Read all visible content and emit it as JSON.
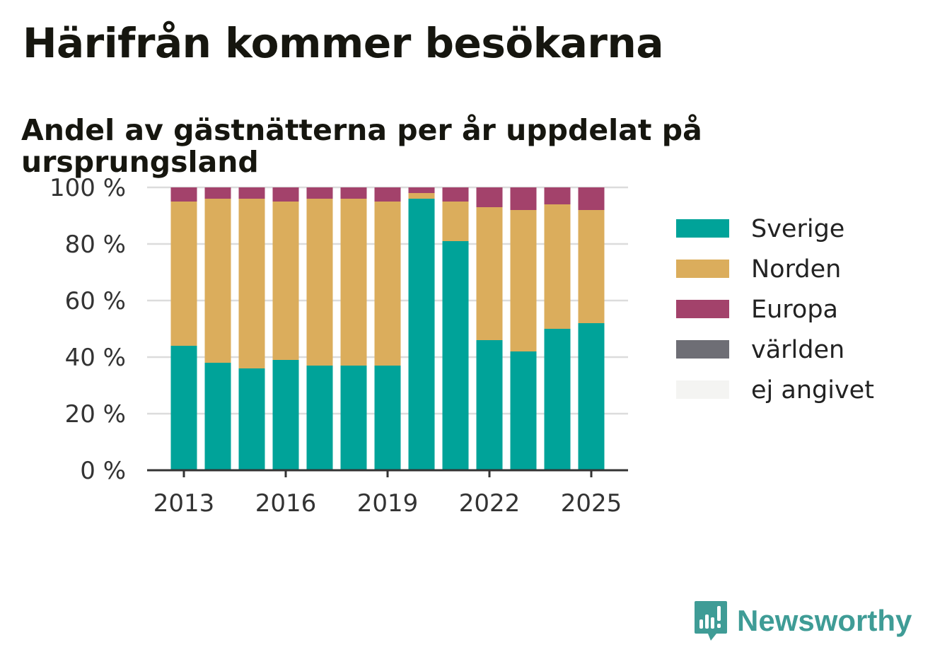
{
  "header": {
    "title": "Härifrån kommer besökarna",
    "subtitle": "Andel av gästnätterna per år uppdelat på ursprungsland"
  },
  "brand": {
    "name": "Newsworthy",
    "icon": "newsworthy-logo-icon"
  },
  "chart_data": {
    "type": "bar",
    "stacked": true,
    "categories": [
      "2013",
      "2014",
      "2015",
      "2016",
      "2017",
      "2018",
      "2019",
      "2020",
      "2021",
      "2022",
      "2023",
      "2024",
      "2025"
    ],
    "x_tick_labels": [
      "2013",
      "2016",
      "2019",
      "2022",
      "2025"
    ],
    "y_tick_labels": [
      "0 %",
      "20 %",
      "40 %",
      "60 %",
      "80 %",
      "100 %"
    ],
    "ylim": [
      0,
      100
    ],
    "grid": "horizontal-dotted",
    "legend_position": "right",
    "series": [
      {
        "name": "Sverige",
        "color": "#00a399",
        "values": [
          44,
          38,
          36,
          39,
          37,
          37,
          37,
          96,
          81,
          46,
          42,
          50,
          52
        ]
      },
      {
        "name": "Norden",
        "color": "#dbad5c",
        "values": [
          51,
          58,
          60,
          56,
          59,
          59,
          58,
          2,
          14,
          47,
          50,
          44,
          40
        ]
      },
      {
        "name": "Europa",
        "color": "#a3426b",
        "values": [
          5,
          4,
          4,
          5,
          4,
          4,
          5,
          2,
          5,
          7,
          8,
          6,
          8
        ]
      },
      {
        "name": "världen",
        "color": "#6e6e75",
        "values": [
          0,
          0,
          0,
          0,
          0,
          0,
          0,
          0,
          0,
          0,
          0,
          0,
          0
        ]
      },
      {
        "name": "ej angivet",
        "color": "#f4f4f2",
        "values": [
          0,
          0,
          0,
          0,
          0,
          0,
          0,
          0,
          0,
          0,
          0,
          0,
          0
        ]
      }
    ]
  }
}
